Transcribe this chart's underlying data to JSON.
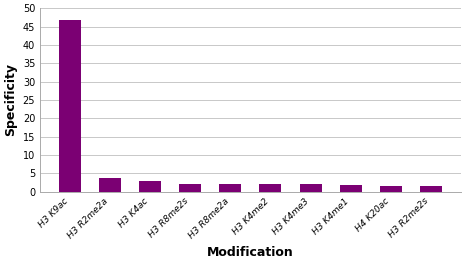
{
  "categories": [
    "H3 K9ac",
    "H3 R2me2a",
    "H3 K4ac",
    "H3 R8me2s",
    "H3 R8me2a",
    "H3 K4me2",
    "H3 K4me3",
    "H3 K4me1",
    "H4 K20ac",
    "H3 R2me2s"
  ],
  "values": [
    46.8,
    3.6,
    2.8,
    2.2,
    2.2,
    2.2,
    2.0,
    1.9,
    1.5,
    1.5
  ],
  "bar_color": "#7B0073",
  "ylabel": "Specificity",
  "xlabel": "Modification",
  "ylim": [
    0,
    50
  ],
  "yticks": [
    0,
    5,
    10,
    15,
    20,
    25,
    30,
    35,
    40,
    45,
    50
  ],
  "background_color": "#ffffff",
  "grid_color": "#c8c8c8",
  "ylabel_fontsize": 9,
  "xlabel_fontsize": 9,
  "tick_label_fontsize": 6.5,
  "ytick_fontsize": 7,
  "bar_width": 0.55
}
